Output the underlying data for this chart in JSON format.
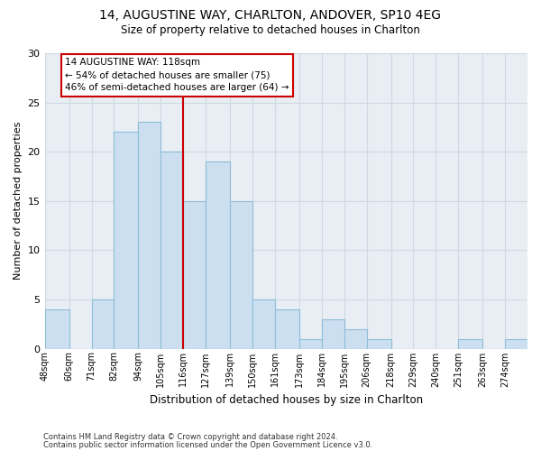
{
  "title1": "14, AUGUSTINE WAY, CHARLTON, ANDOVER, SP10 4EG",
  "title2": "Size of property relative to detached houses in Charlton",
  "xlabel": "Distribution of detached houses by size in Charlton",
  "ylabel": "Number of detached properties",
  "bins": [
    48,
    60,
    71,
    82,
    94,
    105,
    116,
    127,
    139,
    150,
    161,
    173,
    184,
    195,
    206,
    218,
    229,
    240,
    251,
    263,
    274
  ],
  "counts": [
    4,
    0,
    5,
    22,
    23,
    20,
    15,
    19,
    15,
    5,
    4,
    1,
    3,
    2,
    1,
    0,
    0,
    0,
    1,
    0,
    1
  ],
  "bar_color": "#ccdff0",
  "bar_edge_color": "#8dbdd8",
  "vline_x_bin_index": 6,
  "vline_color": "#cc0000",
  "annotation_text": "14 AUGUSTINE WAY: 118sqm\n← 54% of detached houses are smaller (75)\n46% of semi-detached houses are larger (64) →",
  "annotation_box_color": "#ffffff",
  "annotation_box_edge_color": "#cc0000",
  "ylim": [
    0,
    30
  ],
  "yticks": [
    0,
    5,
    10,
    15,
    20,
    25,
    30
  ],
  "grid_color": "#d0d8e0",
  "bg_color": "#e8eef4",
  "footnote1": "Contains HM Land Registry data © Crown copyright and database right 2024.",
  "footnote2": "Contains public sector information licensed under the Open Government Licence v3.0.",
  "tick_labels": [
    "48sqm",
    "60sqm",
    "71sqm",
    "82sqm",
    "94sqm",
    "105sqm",
    "116sqm",
    "127sqm",
    "139sqm",
    "150sqm",
    "161sqm",
    "173sqm",
    "184sqm",
    "195sqm",
    "206sqm",
    "218sqm",
    "229sqm",
    "240sqm",
    "251sqm",
    "263sqm",
    "274sqm"
  ]
}
